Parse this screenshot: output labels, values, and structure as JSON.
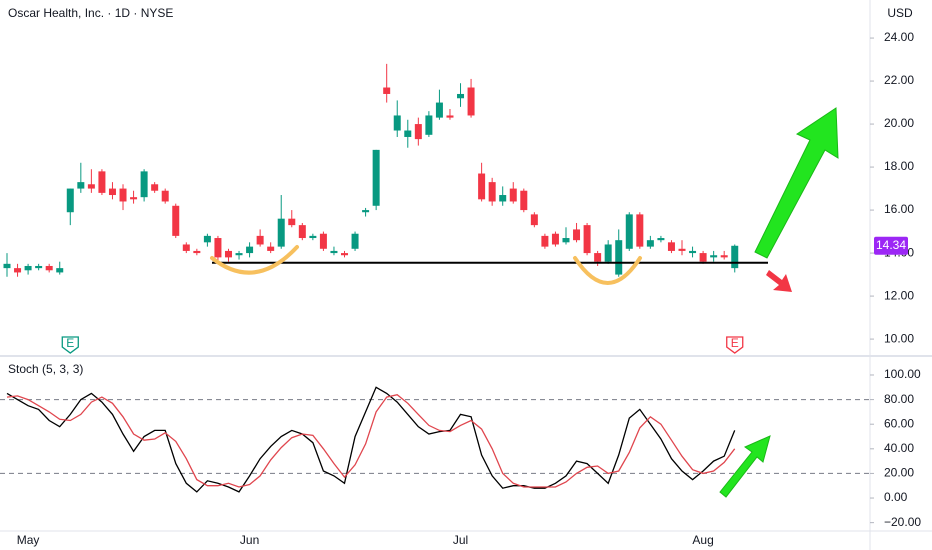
{
  "chart_data": [
    {
      "type": "candlestick",
      "title": "Oscar Health, Inc. · 1D · NYSE",
      "currency": "USD",
      "up_color": "#089981",
      "down_color": "#f23645",
      "categories": [
        null,
        null,
        "May",
        null,
        null,
        null,
        null,
        null,
        null,
        null,
        null,
        null,
        null,
        null,
        null,
        null,
        null,
        null,
        null,
        null,
        null,
        null,
        null,
        "Jun",
        null,
        null,
        null,
        null,
        null,
        null,
        null,
        null,
        null,
        null,
        null,
        null,
        null,
        null,
        null,
        null,
        null,
        null,
        null,
        "Jul",
        null,
        null,
        null,
        null,
        null,
        null,
        null,
        null,
        null,
        null,
        null,
        null,
        null,
        null,
        null,
        null,
        null,
        null,
        null,
        null,
        null,
        null,
        "Aug",
        null,
        null,
        null
      ],
      "ohlc": [
        [
          13.3,
          14.0,
          12.9,
          13.5
        ],
        [
          13.3,
          13.5,
          12.9,
          13.1
        ],
        [
          13.2,
          13.5,
          13.0,
          13.4
        ],
        [
          13.3,
          13.5,
          13.2,
          13.4
        ],
        [
          13.4,
          13.5,
          13.1,
          13.2
        ],
        [
          13.1,
          13.6,
          13.0,
          13.3
        ],
        [
          15.9,
          17.0,
          15.3,
          17.0
        ],
        [
          17.0,
          18.2,
          16.8,
          17.3
        ],
        [
          17.2,
          17.9,
          16.8,
          17.0
        ],
        [
          17.8,
          17.9,
          16.7,
          16.8
        ],
        [
          17.0,
          17.3,
          16.5,
          16.7
        ],
        [
          17.0,
          17.2,
          16.0,
          16.4
        ],
        [
          16.6,
          16.9,
          16.3,
          16.5
        ],
        [
          16.6,
          17.9,
          16.4,
          17.8
        ],
        [
          17.2,
          17.3,
          16.8,
          16.9
        ],
        [
          16.9,
          17.0,
          16.3,
          16.4
        ],
        [
          16.2,
          16.3,
          14.7,
          14.8
        ],
        [
          14.4,
          14.5,
          14.0,
          14.1
        ],
        [
          14.1,
          14.2,
          13.9,
          14.0
        ],
        [
          14.5,
          14.9,
          14.3,
          14.8
        ],
        [
          14.7,
          14.8,
          13.6,
          13.8
        ],
        [
          14.1,
          14.2,
          13.6,
          13.8
        ],
        [
          13.9,
          14.1,
          13.7,
          14.0
        ],
        [
          14.0,
          14.5,
          13.8,
          14.3
        ],
        [
          14.8,
          15.1,
          14.3,
          14.4
        ],
        [
          14.3,
          14.5,
          14.0,
          14.1
        ],
        [
          14.3,
          16.7,
          14.2,
          15.6
        ],
        [
          15.6,
          16.0,
          15.2,
          15.3
        ],
        [
          15.3,
          15.4,
          14.6,
          14.7
        ],
        [
          14.7,
          14.9,
          14.6,
          14.8
        ],
        [
          14.9,
          15.0,
          14.1,
          14.2
        ],
        [
          14.0,
          14.3,
          13.9,
          14.1
        ],
        [
          14.0,
          14.1,
          13.8,
          13.9
        ],
        [
          14.2,
          15.0,
          14.1,
          14.9
        ],
        [
          15.9,
          16.1,
          15.7,
          16.0
        ],
        [
          16.2,
          18.8,
          16.0,
          18.8
        ],
        [
          21.7,
          22.8,
          21.0,
          21.4
        ],
        [
          19.7,
          21.1,
          19.4,
          20.4
        ],
        [
          19.4,
          20.2,
          18.9,
          19.7
        ],
        [
          20.0,
          20.3,
          19.0,
          19.3
        ],
        [
          19.5,
          20.6,
          19.4,
          20.4
        ],
        [
          20.3,
          21.6,
          20.2,
          21.0
        ],
        [
          20.4,
          20.7,
          20.2,
          20.3
        ],
        [
          21.2,
          21.9,
          20.8,
          21.4
        ],
        [
          21.7,
          22.1,
          20.3,
          20.4
        ],
        [
          17.7,
          18.2,
          16.4,
          16.5
        ],
        [
          17.3,
          17.5,
          16.2,
          16.4
        ],
        [
          16.4,
          17.1,
          16.2,
          16.7
        ],
        [
          17.0,
          17.3,
          16.3,
          16.4
        ],
        [
          16.9,
          17.0,
          15.9,
          16.0
        ],
        [
          15.8,
          15.9,
          15.2,
          15.3
        ],
        [
          14.8,
          14.9,
          14.2,
          14.3
        ],
        [
          14.9,
          15.0,
          14.3,
          14.4
        ],
        [
          14.5,
          15.2,
          14.4,
          14.7
        ],
        [
          15.1,
          15.4,
          14.5,
          14.6
        ],
        [
          15.3,
          15.4,
          13.9,
          14.0
        ],
        [
          14.0,
          14.1,
          13.4,
          13.6
        ],
        [
          13.6,
          14.6,
          13.5,
          14.4
        ],
        [
          13.0,
          15.1,
          12.9,
          14.6
        ],
        [
          14.2,
          15.9,
          14.1,
          15.8
        ],
        [
          15.8,
          15.9,
          14.2,
          14.3
        ],
        [
          14.3,
          14.8,
          14.2,
          14.6
        ],
        [
          14.6,
          14.8,
          14.5,
          14.7
        ],
        [
          14.5,
          14.6,
          14.0,
          14.1
        ],
        [
          14.2,
          14.6,
          13.9,
          14.1
        ],
        [
          14.0,
          14.3,
          13.8,
          14.1
        ],
        [
          14.0,
          14.1,
          13.5,
          13.6
        ],
        [
          13.8,
          14.1,
          13.6,
          13.9
        ],
        [
          13.9,
          14.1,
          13.7,
          13.8
        ],
        [
          13.3,
          14.4,
          13.1,
          14.34
        ]
      ],
      "ylim": [
        9.26,
        25.77
      ],
      "yticks": [
        {
          "value": 10,
          "label": "10.00"
        },
        {
          "value": 12,
          "label": "12.00"
        },
        {
          "value": 14,
          "label": "14.00"
        },
        {
          "value": 16,
          "label": "16.00"
        },
        {
          "value": 18,
          "label": "18.00"
        },
        {
          "value": 20,
          "label": "20.00"
        },
        {
          "value": 22,
          "label": "22.00"
        },
        {
          "value": 24,
          "label": "24.00"
        }
      ],
      "last_price": 14.34,
      "last_price_color": "#9c27f5",
      "support_level": 13.55,
      "events": [
        {
          "index": 6,
          "label": "E",
          "color": "#089981"
        },
        {
          "index": 69,
          "label": "E",
          "color": "#f23645"
        }
      ]
    },
    {
      "type": "line",
      "title": "Stoch (5, 3, 3)",
      "series": [
        {
          "color": "#000000",
          "values": [
            85,
            80,
            75,
            72,
            63,
            58,
            68,
            80,
            85,
            78,
            68,
            52,
            38,
            50,
            55,
            55,
            28,
            12,
            5,
            14,
            12,
            9,
            5,
            18,
            32,
            42,
            50,
            55,
            52,
            45,
            22,
            18,
            12,
            50,
            70,
            90,
            85,
            78,
            68,
            58,
            52,
            54,
            55,
            68,
            66,
            35,
            18,
            8,
            10,
            10,
            8,
            8,
            12,
            18,
            30,
            28,
            20,
            12,
            35,
            65,
            72,
            60,
            48,
            32,
            22,
            15,
            22,
            30,
            34,
            55
          ]
        },
        {
          "color": "#e0464e",
          "values": [
            82,
            83,
            80,
            75,
            70,
            64,
            63,
            68,
            78,
            82,
            77,
            66,
            52,
            47,
            48,
            53,
            46,
            32,
            15,
            10,
            10,
            12,
            9,
            11,
            18,
            31,
            41,
            49,
            52,
            51,
            40,
            28,
            17,
            27,
            44,
            70,
            82,
            84,
            77,
            68,
            59,
            55,
            54,
            59,
            63,
            56,
            40,
            20,
            12,
            9,
            9,
            9,
            9,
            13,
            20,
            25,
            26,
            20,
            22,
            37,
            57,
            66,
            60,
            47,
            34,
            23,
            20,
            22,
            29,
            40
          ]
        }
      ],
      "ylim": [
        -27.6,
        113.8
      ],
      "yticks": [
        {
          "value": -20,
          "label": "−20.00"
        },
        {
          "value": 0,
          "label": "0.00"
        },
        {
          "value": 20,
          "label": "20.00"
        },
        {
          "value": 40,
          "label": "40.00"
        },
        {
          "value": 60,
          "label": "60.00"
        },
        {
          "value": 80,
          "label": "80.00"
        },
        {
          "value": 100,
          "label": "100.00"
        }
      ],
      "levels": [
        80,
        20
      ]
    }
  ]
}
